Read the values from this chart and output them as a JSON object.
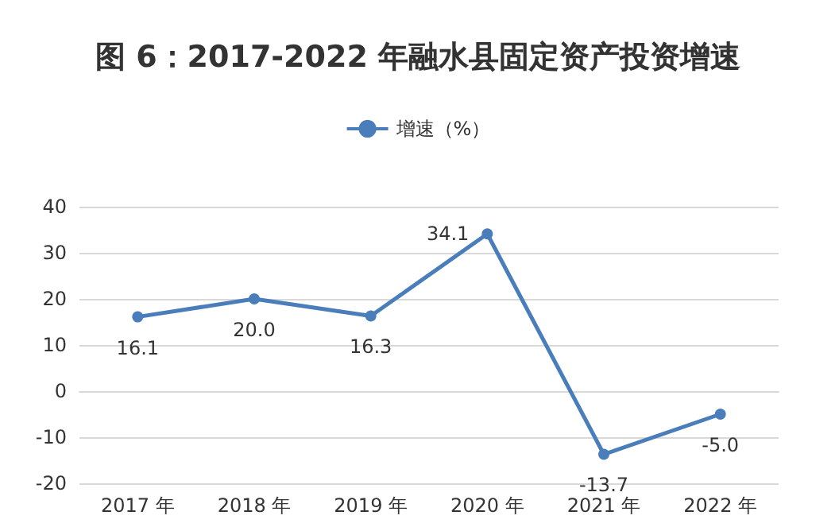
{
  "chart_data": {
    "type": "line",
    "title": "图 6：2017-2022 年融水县固定资产投资增速",
    "categories": [
      "2017 年",
      "2018 年",
      "2019 年",
      "2020 年",
      "2021 年",
      "2022 年"
    ],
    "series": [
      {
        "name": "增速（%）",
        "color": "#4a7ebb",
        "values": [
          16.1,
          20.0,
          16.3,
          34.1,
          -13.7,
          -5.0
        ],
        "value_labels": [
          "16.1",
          "20.0",
          "16.3",
          "34.1",
          "-13.7",
          "-5.0"
        ]
      }
    ],
    "ylim": [
      -20,
      40
    ],
    "yticks": [
      -20,
      -10,
      0,
      10,
      20,
      30,
      40
    ],
    "grid": "y",
    "legend": "top",
    "marker": "circle",
    "line_style": "solid"
  }
}
